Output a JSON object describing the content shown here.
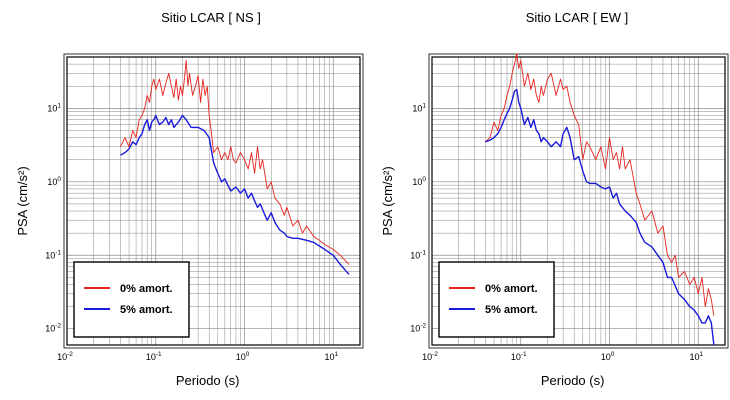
{
  "chart_data": [
    {
      "type": "line",
      "title": "Sitio LCAR [ NS ]",
      "xlabel": "Periodo (s)",
      "ylabel": "PSA (cm/s²)",
      "xscale": "log",
      "yscale": "log",
      "xlim": [
        0.01,
        20
      ],
      "ylim": [
        0.006,
        50
      ],
      "xticks": [
        "10⁻²",
        "10⁻¹",
        "10⁰",
        "10¹"
      ],
      "yticks": [
        "10⁻²",
        "10⁻¹",
        "10⁰",
        "10¹"
      ],
      "grid": true,
      "legend_position": "bottom-left",
      "series": [
        {
          "name": "0% amort.",
          "color": "#e8231d",
          "x": [
            0.04,
            0.045,
            0.05,
            0.055,
            0.06,
            0.065,
            0.07,
            0.075,
            0.08,
            0.085,
            0.09,
            0.095,
            0.1,
            0.11,
            0.12,
            0.13,
            0.14,
            0.15,
            0.16,
            0.17,
            0.18,
            0.19,
            0.2,
            0.21,
            0.22,
            0.23,
            0.24,
            0.26,
            0.28,
            0.3,
            0.32,
            0.34,
            0.36,
            0.38,
            0.4,
            0.42,
            0.45,
            0.5,
            0.55,
            0.6,
            0.65,
            0.7,
            0.75,
            0.8,
            0.9,
            1.0,
            1.1,
            1.2,
            1.3,
            1.4,
            1.5,
            1.6,
            1.8,
            2.0,
            2.2,
            2.5,
            2.8,
            3.0,
            3.5,
            4.0,
            4.5,
            5.0,
            6.0,
            7.0,
            8.0,
            10.0,
            12.0,
            15.0
          ],
          "values": [
            3.0,
            4.0,
            3.0,
            5.0,
            4.0,
            7.0,
            8.0,
            10.0,
            15.0,
            12.0,
            20.0,
            25.0,
            18.0,
            25.0,
            15.0,
            22.0,
            30.0,
            20.0,
            14.0,
            25.0,
            13.0,
            20.0,
            15.0,
            25.0,
            45.0,
            20.0,
            30.0,
            15.0,
            20.0,
            28.0,
            12.0,
            25.0,
            15.0,
            20.0,
            8.0,
            5.0,
            2.5,
            3.0,
            2.0,
            2.5,
            2.0,
            3.0,
            2.0,
            1.8,
            2.5,
            2.0,
            1.5,
            2.5,
            1.3,
            3.0,
            1.5,
            2.0,
            0.8,
            1.0,
            0.6,
            0.5,
            0.35,
            0.45,
            0.25,
            0.3,
            0.2,
            0.25,
            0.18,
            0.16,
            0.14,
            0.12,
            0.1,
            0.075
          ]
        },
        {
          "name": "5% amort.",
          "color": "#1a1adc",
          "x": [
            0.04,
            0.045,
            0.05,
            0.055,
            0.06,
            0.065,
            0.07,
            0.075,
            0.08,
            0.085,
            0.09,
            0.095,
            0.1,
            0.11,
            0.12,
            0.13,
            0.14,
            0.15,
            0.16,
            0.17,
            0.18,
            0.2,
            0.22,
            0.25,
            0.28,
            0.3,
            0.35,
            0.4,
            0.45,
            0.5,
            0.55,
            0.6,
            0.65,
            0.7,
            0.8,
            0.9,
            1.0,
            1.1,
            1.2,
            1.3,
            1.4,
            1.5,
            1.7,
            1.8,
            2.0,
            2.2,
            2.5,
            2.8,
            3.0,
            3.5,
            4.0,
            5.0,
            6.0,
            8.0,
            10.0,
            12.0,
            15.0
          ],
          "values": [
            2.3,
            2.5,
            2.8,
            3.5,
            3.2,
            4.0,
            4.5,
            6.0,
            7.0,
            5.0,
            6.5,
            7.0,
            8.0,
            6.0,
            6.5,
            7.5,
            6.0,
            7.0,
            5.5,
            6.0,
            6.5,
            8.0,
            7.0,
            5.5,
            5.5,
            5.5,
            5.0,
            4.0,
            1.8,
            1.3,
            1.0,
            1.1,
            0.9,
            0.75,
            0.85,
            0.7,
            0.8,
            0.6,
            0.7,
            0.55,
            0.45,
            0.5,
            0.35,
            0.3,
            0.38,
            0.28,
            0.22,
            0.2,
            0.18,
            0.17,
            0.17,
            0.16,
            0.15,
            0.12,
            0.1,
            0.075,
            0.055
          ]
        }
      ]
    },
    {
      "type": "line",
      "title": "Sitio LCAR [ EW ]",
      "xlabel": "Periodo (s)",
      "ylabel": "PSA (cm/s²)",
      "xscale": "log",
      "yscale": "log",
      "xlim": [
        0.01,
        20
      ],
      "ylim": [
        0.006,
        50
      ],
      "xticks": [
        "10⁻²",
        "10⁻¹",
        "10⁰",
        "10¹"
      ],
      "yticks": [
        "10⁻²",
        "10⁻¹",
        "10⁰",
        "10¹"
      ],
      "grid": true,
      "legend_position": "bottom-left",
      "series": [
        {
          "name": "0% amort.",
          "color": "#e8231d",
          "x": [
            0.04,
            0.045,
            0.05,
            0.055,
            0.06,
            0.065,
            0.07,
            0.075,
            0.08,
            0.085,
            0.09,
            0.095,
            0.1,
            0.11,
            0.12,
            0.13,
            0.14,
            0.15,
            0.16,
            0.17,
            0.18,
            0.2,
            0.22,
            0.25,
            0.28,
            0.3,
            0.33,
            0.36,
            0.4,
            0.45,
            0.5,
            0.55,
            0.6,
            0.7,
            0.8,
            0.9,
            1.0,
            1.1,
            1.2,
            1.3,
            1.4,
            1.5,
            1.7,
            2.0,
            2.2,
            2.5,
            3.0,
            3.5,
            4.0,
            4.5,
            5.0,
            5.5,
            6.0,
            7.0,
            8.0,
            9.0,
            10.0,
            11.0,
            12.0,
            13.0,
            14.0,
            15.0
          ],
          "values": [
            3.5,
            4.0,
            6.5,
            5.0,
            8.0,
            10.0,
            15.0,
            20.0,
            30.0,
            40.0,
            55.0,
            35.0,
            45.0,
            20.0,
            30.0,
            18.0,
            25.0,
            15.0,
            12.0,
            20.0,
            15.0,
            25.0,
            30.0,
            15.0,
            25.0,
            18.0,
            20.0,
            12.0,
            8.0,
            6.0,
            2.0,
            3.5,
            3.0,
            2.0,
            3.0,
            1.5,
            4.0,
            2.0,
            2.5,
            1.5,
            3.0,
            1.5,
            2.0,
            0.7,
            0.5,
            0.3,
            0.4,
            0.2,
            0.25,
            0.1,
            0.08,
            0.1,
            0.05,
            0.06,
            0.04,
            0.05,
            0.03,
            0.05,
            0.02,
            0.035,
            0.025,
            0.015
          ]
        },
        {
          "name": "5% amort.",
          "color": "#1a1adc",
          "x": [
            0.04,
            0.045,
            0.05,
            0.055,
            0.06,
            0.065,
            0.07,
            0.075,
            0.08,
            0.085,
            0.09,
            0.095,
            0.1,
            0.11,
            0.12,
            0.13,
            0.14,
            0.15,
            0.16,
            0.17,
            0.18,
            0.2,
            0.22,
            0.25,
            0.28,
            0.3,
            0.33,
            0.36,
            0.4,
            0.45,
            0.5,
            0.55,
            0.6,
            0.7,
            0.8,
            0.9,
            1.0,
            1.1,
            1.2,
            1.3,
            1.5,
            1.7,
            2.0,
            2.2,
            2.5,
            3.0,
            3.5,
            4.0,
            4.5,
            5.0,
            6.0,
            7.0,
            8.0,
            9.0,
            10.0,
            11.0,
            12.0,
            13.0,
            14.0,
            15.0
          ],
          "values": [
            3.5,
            3.7,
            4.0,
            4.5,
            5.5,
            7.0,
            8.5,
            10.0,
            13.0,
            17.0,
            18.0,
            12.0,
            10.0,
            6.0,
            7.5,
            5.5,
            7.0,
            5.0,
            4.5,
            3.5,
            4.0,
            3.5,
            3.0,
            3.5,
            3.0,
            4.5,
            5.5,
            4.0,
            2.0,
            2.2,
            1.4,
            1.0,
            0.95,
            0.95,
            0.85,
            0.8,
            0.85,
            0.6,
            0.7,
            0.5,
            0.4,
            0.35,
            0.28,
            0.2,
            0.15,
            0.13,
            0.1,
            0.08,
            0.05,
            0.05,
            0.03,
            0.025,
            0.02,
            0.018,
            0.015,
            0.012,
            0.012,
            0.015,
            0.012,
            0.006
          ]
        }
      ]
    }
  ]
}
